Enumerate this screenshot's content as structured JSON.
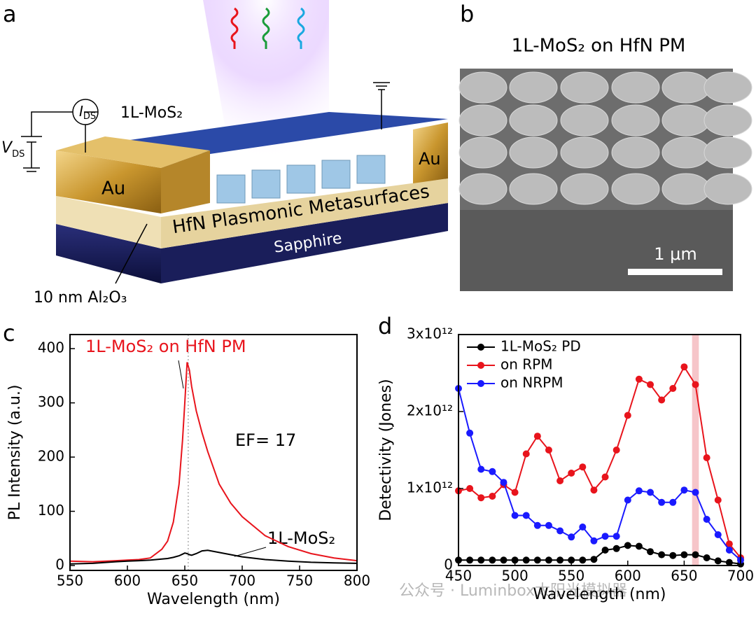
{
  "panels": {
    "a": {
      "label": "a",
      "mos2_label": "1L-MoS₂",
      "au_left": "Au",
      "au_right": "Au",
      "metasurface_label": "HfN Plasmonic Metasurfaces",
      "substrate_label": "Sapphire",
      "oxide_label": "10 nm Al₂O₃",
      "current_label": {
        "main": "I",
        "sub": "DS"
      },
      "voltage_label": {
        "main": "V",
        "sub": "DS"
      }
    },
    "b": {
      "label": "b",
      "title": "1L-MoS₂ on HfN PM",
      "scale_bar": "1 μm"
    }
  },
  "chart_data": [
    {
      "type": "line",
      "panel_label": "c",
      "x_label": "Wavelength (nm)",
      "y_label": "PL Intensity (a.u.)",
      "x": [
        550,
        570,
        590,
        600,
        610,
        620,
        630,
        635,
        640,
        645,
        648,
        650,
        652,
        654,
        656,
        660,
        665,
        670,
        680,
        690,
        700,
        720,
        740,
        760,
        780,
        800
      ],
      "series": [
        {
          "name": "1L-MoS₂ on HfN PM",
          "color": "#e8141c",
          "values": [
            8,
            7,
            9,
            10,
            11,
            14,
            30,
            45,
            80,
            150,
            230,
            300,
            375,
            360,
            330,
            285,
            245,
            210,
            150,
            115,
            90,
            55,
            35,
            22,
            14,
            9
          ]
        },
        {
          "name": "1L-MoS₂",
          "color": "#000000",
          "values": [
            3,
            4,
            7,
            8,
            9,
            10,
            12,
            13,
            15,
            18,
            21,
            23,
            22,
            20,
            19,
            22,
            27,
            28,
            24,
            20,
            16,
            11,
            8,
            6,
            5,
            4
          ]
        }
      ],
      "annotations": [
        "EF= 17"
      ],
      "reference_line": 653,
      "xlim": [
        550,
        800
      ],
      "xticks": [
        550,
        600,
        650,
        700,
        750,
        800
      ],
      "ylim": [
        -9,
        426
      ],
      "yticks": [
        0,
        100,
        200,
        300,
        400
      ]
    },
    {
      "type": "line",
      "panel_label": "d",
      "markers": true,
      "legend": "upper left",
      "x_label": "Wavelength (nm)",
      "y_label": "Detectivity (Jones)",
      "x": [
        450,
        460,
        470,
        480,
        490,
        500,
        510,
        520,
        530,
        540,
        550,
        560,
        570,
        580,
        590,
        600,
        610,
        620,
        630,
        640,
        650,
        660,
        670,
        680,
        690,
        700
      ],
      "series": [
        {
          "name": "1L-MoS₂ PD",
          "color": "#000000",
          "values": [
            70000000000.0,
            70000000000.0,
            70000000000.0,
            70000000000.0,
            70000000000.0,
            70000000000.0,
            70000000000.0,
            70000000000.0,
            70000000000.0,
            70000000000.0,
            70000000000.0,
            70000000000.0,
            80000000000.0,
            200000000000.0,
            220000000000.0,
            260000000000.0,
            250000000000.0,
            180000000000.0,
            140000000000.0,
            130000000000.0,
            140000000000.0,
            140000000000.0,
            100000000000.0,
            60000000000.0,
            40000000000.0,
            20000000000.0
          ]
        },
        {
          "name": "on RPM",
          "color": "#e8141c",
          "values": [
            970000000000.0,
            1000000000000.0,
            880000000000.0,
            900000000000.0,
            1050000000000.0,
            950000000000.0,
            1450000000000.0,
            1680000000000.0,
            1500000000000.0,
            1100000000000.0,
            1200000000000.0,
            1280000000000.0,
            980000000000.0,
            1150000000000.0,
            1500000000000.0,
            1950000000000.0,
            2420000000000.0,
            2350000000000.0,
            2150000000000.0,
            2300000000000.0,
            2580000000000.0,
            2350000000000.0,
            1400000000000.0,
            850000000000.0,
            280000000000.0,
            100000000000.0
          ]
        },
        {
          "name": "on NRPM",
          "color": "#1a1aff",
          "values": [
            2300000000000.0,
            1720000000000.0,
            1250000000000.0,
            1220000000000.0,
            1080000000000.0,
            650000000000.0,
            650000000000.0,
            520000000000.0,
            520000000000.0,
            450000000000.0,
            370000000000.0,
            500000000000.0,
            320000000000.0,
            380000000000.0,
            380000000000.0,
            850000000000.0,
            970000000000.0,
            950000000000.0,
            820000000000.0,
            820000000000.0,
            980000000000.0,
            950000000000.0,
            600000000000.0,
            400000000000.0,
            200000000000.0,
            70000000000.0
          ]
        }
      ],
      "highlight_band": [
        657,
        663
      ],
      "highlight_color": "#f4b6bb",
      "xlim": [
        450,
        700
      ],
      "xticks": [
        450,
        500,
        550,
        600,
        650,
        700
      ],
      "ylim": [
        0,
        3000000000000.0
      ],
      "yticks": [
        0,
        {
          "value": 1000000000000.0,
          "label": "1x10¹²"
        },
        {
          "value": 2000000000000.0,
          "label": "2x10¹²"
        },
        {
          "value": 3000000000000.0,
          "label": "3x10¹²"
        }
      ]
    }
  ],
  "watermark": "公众号 · Luminbox太阳光模拟器"
}
